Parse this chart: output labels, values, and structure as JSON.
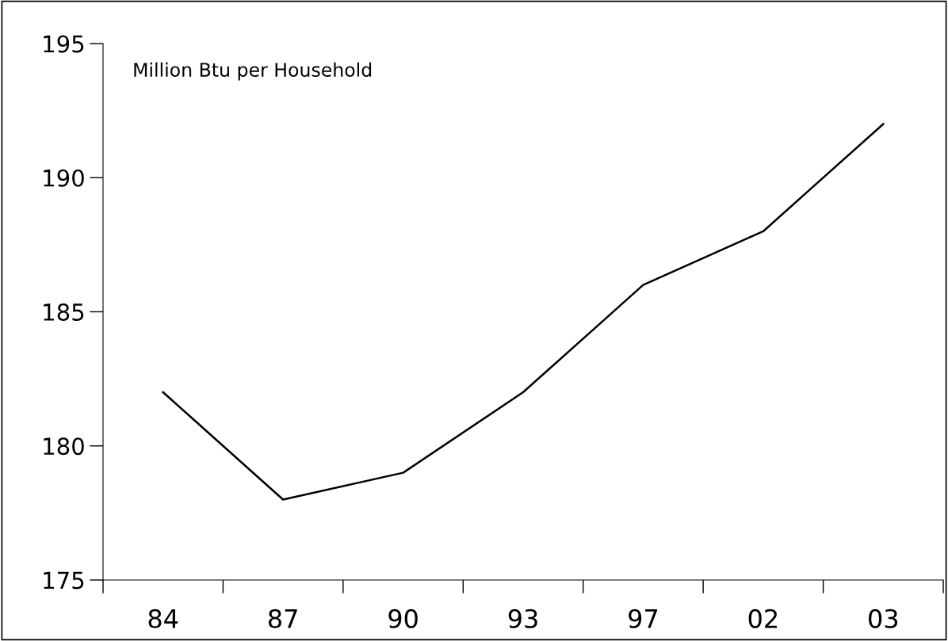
{
  "chart_data": {
    "type": "line",
    "ylabel": "Million Btu per Household",
    "categories": [
      "84",
      "87",
      "90",
      "93",
      "97",
      "02",
      "03"
    ],
    "series": [
      {
        "color": "#000000",
        "values": [
          182,
          178,
          179,
          182,
          186,
          188,
          192
        ]
      }
    ],
    "ylim": [
      175,
      195
    ],
    "yticks": [
      175,
      180,
      185,
      190,
      195
    ],
    "grid": false,
    "marker": "none",
    "line_style": "solid"
  }
}
